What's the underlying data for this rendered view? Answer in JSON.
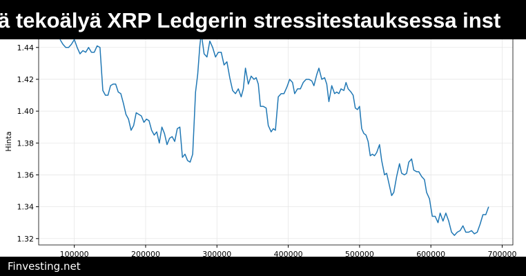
{
  "chart_data": {
    "type": "line",
    "title": "ä tekoälyä XRP Ledgerin stressitestauksessa inst",
    "ylabel": "Hinta",
    "color": "#1f77b4",
    "grid": true,
    "xlim": [
      50000,
      715000
    ],
    "ylim": [
      1.316,
      1.449
    ],
    "xticks": [
      100000,
      200000,
      300000,
      400000,
      500000,
      600000,
      700000
    ],
    "yticks": [
      1.32,
      1.34,
      1.36,
      1.38,
      {
        "value": 1.4,
        "label": "1.40"
      },
      1.42,
      1.44
    ],
    "x": [
      80000,
      84000,
      88000,
      92000,
      96000,
      100000,
      104000,
      108000,
      112000,
      116000,
      120000,
      124000,
      128000,
      132000,
      136000,
      140000,
      143600,
      147200,
      150800,
      154400,
      158000,
      161600,
      165200,
      168800,
      172400,
      176000,
      179600,
      183200,
      186800,
      190400,
      194000,
      197600,
      201200,
      204800,
      208400,
      212000,
      215600,
      219200,
      222800,
      226400,
      230000,
      233600,
      237200,
      240800,
      244400,
      248000,
      251600,
      255200,
      258800,
      262400,
      266000,
      270000,
      273000,
      276000,
      278000,
      282000,
      286000,
      290000,
      294000,
      298000,
      302000,
      306000,
      310000,
      314000,
      318000,
      322000,
      326000,
      330000,
      334000,
      337000,
      340000,
      344000,
      348000,
      352000,
      355000,
      358000,
      361000,
      365000,
      369000,
      372000,
      376000,
      379000,
      382000,
      386000,
      390000,
      394000,
      398000,
      402000,
      406000,
      409000,
      413000,
      417000,
      421000,
      425000,
      429000,
      433000,
      436000,
      440000,
      443000,
      447000,
      451000,
      454000,
      457000,
      461000,
      465000,
      468000,
      471000,
      474000,
      478000,
      481000,
      484000,
      488000,
      491000,
      494000,
      497000,
      500000,
      503000,
      506000,
      509000,
      512000,
      515000,
      518000,
      521000,
      524000,
      528000,
      531000,
      535000,
      538000,
      541000,
      545000,
      548000,
      552000,
      556000,
      559000,
      563000,
      566000,
      569000,
      573000,
      576000,
      580000,
      583000,
      587000,
      591000,
      594000,
      598000,
      602000,
      606000,
      610000,
      613000,
      617000,
      621000,
      625000,
      629000,
      633000,
      637000,
      641000,
      645000,
      649000,
      653000,
      657000,
      661000,
      665000,
      669000,
      673000,
      677000,
      681000
    ],
    "values": [
      1.445,
      1.442,
      1.44,
      1.44,
      1.442,
      1.445,
      1.44,
      1.436,
      1.438,
      1.437,
      1.44,
      1.437,
      1.437,
      1.441,
      1.44,
      1.413,
      1.41,
      1.41,
      1.416,
      1.417,
      1.417,
      1.412,
      1.411,
      1.405,
      1.398,
      1.395,
      1.388,
      1.391,
      1.399,
      1.398,
      1.397,
      1.393,
      1.395,
      1.394,
      1.388,
      1.385,
      1.387,
      1.38,
      1.39,
      1.386,
      1.379,
      1.383,
      1.384,
      1.381,
      1.389,
      1.39,
      1.371,
      1.373,
      1.369,
      1.368,
      1.373,
      1.412,
      1.423,
      1.441,
      1.449,
      1.436,
      1.434,
      1.444,
      1.44,
      1.434,
      1.437,
      1.437,
      1.429,
      1.431,
      1.421,
      1.413,
      1.411,
      1.414,
      1.409,
      1.414,
      1.427,
      1.417,
      1.422,
      1.42,
      1.421,
      1.417,
      1.403,
      1.403,
      1.402,
      1.391,
      1.387,
      1.389,
      1.388,
      1.409,
      1.411,
      1.411,
      1.415,
      1.42,
      1.418,
      1.411,
      1.414,
      1.414,
      1.418,
      1.42,
      1.42,
      1.419,
      1.416,
      1.423,
      1.427,
      1.42,
      1.421,
      1.417,
      1.406,
      1.416,
      1.411,
      1.412,
      1.411,
      1.414,
      1.413,
      1.418,
      1.414,
      1.412,
      1.41,
      1.402,
      1.401,
      1.403,
      1.389,
      1.386,
      1.385,
      1.381,
      1.372,
      1.373,
      1.372,
      1.374,
      1.379,
      1.369,
      1.36,
      1.361,
      1.355,
      1.347,
      1.349,
      1.359,
      1.367,
      1.361,
      1.36,
      1.361,
      1.368,
      1.37,
      1.363,
      1.362,
      1.362,
      1.359,
      1.357,
      1.349,
      1.345,
      1.334,
      1.334,
      1.33,
      1.336,
      1.331,
      1.336,
      1.331,
      1.324,
      1.322,
      1.324,
      1.325,
      1.328,
      1.324,
      1.324,
      1.325,
      1.323,
      1.324,
      1.329,
      1.335,
      1.335,
      1.34
    ]
  },
  "footer": "Finvesting.net"
}
